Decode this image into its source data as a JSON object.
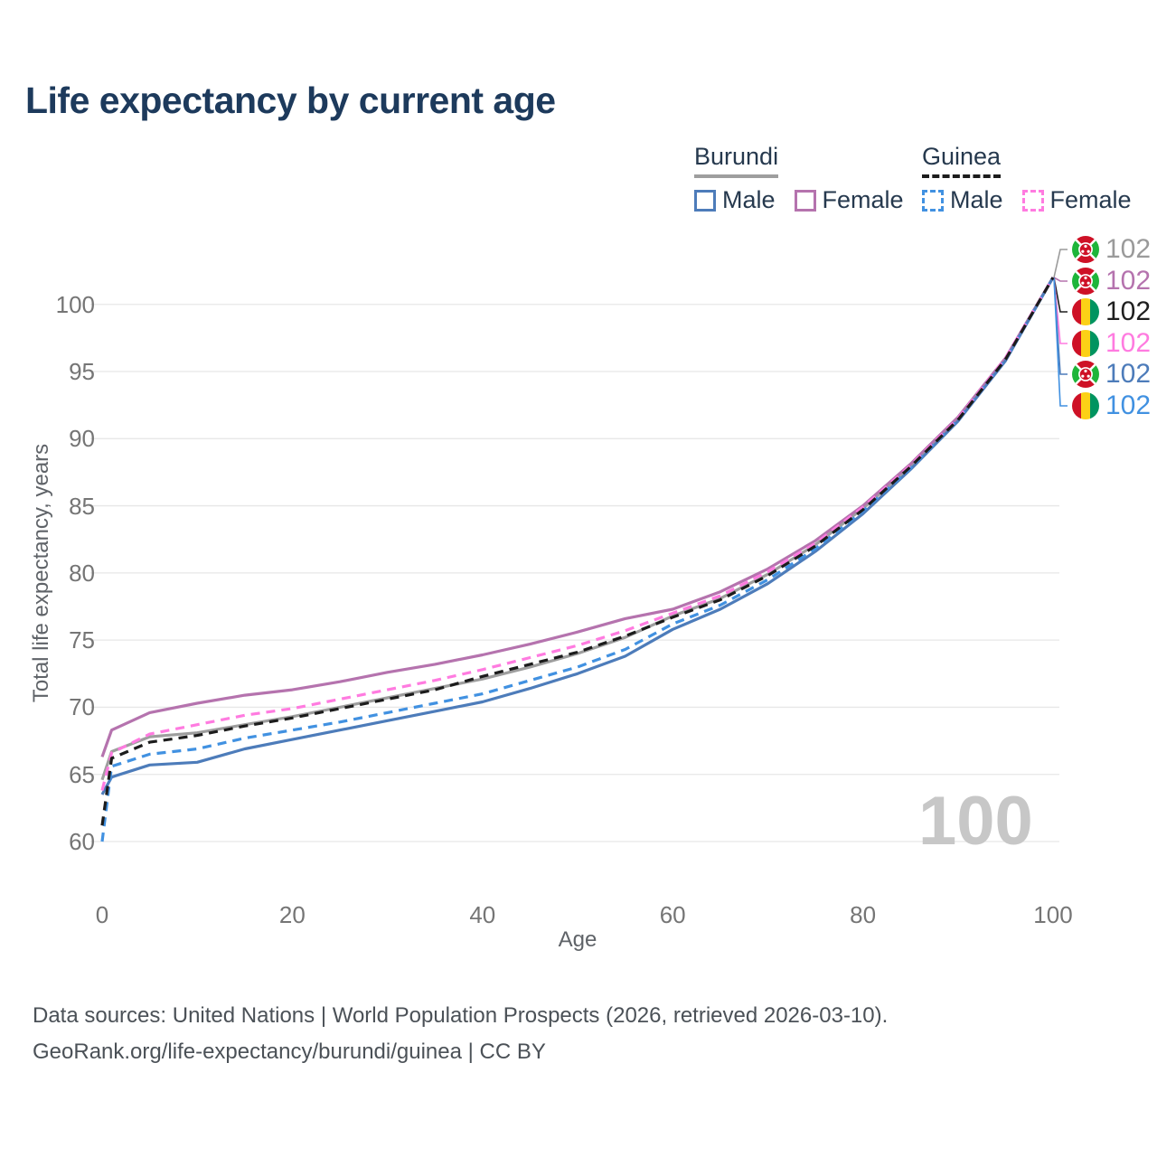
{
  "title": "Life expectancy by current age",
  "watermark": "100",
  "footer": {
    "line1": "Data sources: United Nations | World Population Prospects (2026, retrieved 2026-03-10).",
    "line2": "GeoRank.org/life-expectancy/burundi/guinea | CC BY"
  },
  "legend": {
    "groups": [
      {
        "name": "Burundi",
        "underline_style": "solid",
        "underline_color": "#9e9e9e",
        "items": [
          {
            "label": "Male",
            "color": "#4d7cba",
            "dash": false
          },
          {
            "label": "Female",
            "color": "#b573ae",
            "dash": false
          }
        ]
      },
      {
        "name": "Guinea",
        "underline_style": "dashed",
        "underline_color": "#1c1c1c",
        "items": [
          {
            "label": "Male",
            "color": "#4191e1",
            "dash": true
          },
          {
            "label": "Female",
            "color": "#ff7be0",
            "dash": true
          }
        ]
      }
    ]
  },
  "axes": {
    "x_title": "Age",
    "y_title": "Total life expectancy, years",
    "x_ticks": [
      0,
      20,
      40,
      60,
      80,
      100
    ],
    "y_ticks": [
      60,
      65,
      70,
      75,
      80,
      85,
      90,
      95,
      100
    ]
  },
  "chart_data": {
    "type": "line",
    "title": "Life expectancy by current age",
    "xlabel": "Age",
    "ylabel": "Total life expectancy, years",
    "xlim": [
      0,
      100
    ],
    "ylim": [
      58.5,
      103
    ],
    "grid": "horizontal gridlines every 5 years",
    "legend_position": "top-right",
    "x": [
      0,
      1,
      5,
      10,
      15,
      20,
      25,
      30,
      35,
      40,
      45,
      50,
      55,
      60,
      65,
      70,
      75,
      80,
      85,
      90,
      95,
      100
    ],
    "series": [
      {
        "name": "Burundi Total",
        "country": "Burundi",
        "sex": "Total",
        "color": "#9e9e9e",
        "dash": false,
        "values": [
          64.6,
          66.7,
          67.8,
          68.1,
          68.7,
          69.3,
          70.0,
          70.7,
          71.4,
          72.1,
          73.0,
          74.0,
          75.2,
          76.8,
          78.1,
          79.9,
          82.1,
          84.8,
          87.9,
          91.5,
          95.9,
          102
        ]
      },
      {
        "name": "Burundi Female",
        "country": "Burundi",
        "sex": "Female",
        "color": "#b573ae",
        "dash": false,
        "values": [
          66.3,
          68.3,
          69.6,
          70.3,
          70.9,
          71.3,
          71.9,
          72.6,
          73.2,
          73.9,
          74.7,
          75.6,
          76.6,
          77.3,
          78.6,
          80.3,
          82.4,
          85.0,
          88.1,
          91.6,
          96.0,
          102
        ]
      },
      {
        "name": "Burundi Male",
        "country": "Burundi",
        "sex": "Male",
        "color": "#4d7cba",
        "dash": false,
        "values": [
          63.5,
          64.8,
          65.7,
          65.9,
          66.9,
          67.6,
          68.3,
          69.0,
          69.7,
          70.4,
          71.4,
          72.5,
          73.8,
          75.8,
          77.3,
          79.2,
          81.6,
          84.4,
          87.7,
          91.3,
          95.8,
          102
        ]
      },
      {
        "name": "Guinea Male",
        "country": "Guinea",
        "sex": "Male",
        "color": "#4191e1",
        "dash": true,
        "values": [
          60.0,
          65.6,
          66.5,
          66.9,
          67.7,
          68.3,
          68.9,
          69.6,
          70.3,
          71.0,
          72.0,
          73.0,
          74.3,
          76.2,
          77.6,
          79.5,
          81.8,
          84.6,
          87.8,
          91.4,
          95.9,
          102
        ]
      },
      {
        "name": "Guinea Female",
        "country": "Guinea",
        "sex": "Female",
        "color": "#ff7be0",
        "dash": true,
        "values": [
          63.8,
          66.6,
          68.0,
          68.7,
          69.4,
          69.9,
          70.6,
          71.3,
          72.0,
          72.8,
          73.7,
          74.6,
          75.7,
          77.0,
          78.3,
          80.1,
          82.2,
          84.9,
          88.0,
          91.5,
          96.0,
          102
        ]
      },
      {
        "name": "Guinea Total",
        "country": "Guinea",
        "sex": "Total",
        "color": "#1c1c1c",
        "dash": true,
        "values": [
          61.2,
          66.2,
          67.4,
          67.9,
          68.6,
          69.2,
          69.9,
          70.6,
          71.3,
          72.3,
          73.2,
          74.1,
          75.3,
          76.7,
          78.0,
          79.8,
          82.0,
          84.7,
          87.9,
          91.4,
          95.9,
          102
        ]
      }
    ],
    "end_labels": [
      {
        "text": "102",
        "color": "#9a9a9a",
        "flag": "burundi",
        "series": "Burundi Total"
      },
      {
        "text": "102",
        "color": "#b573ae",
        "flag": "burundi",
        "series": "Burundi Female"
      },
      {
        "text": "102",
        "color": "#1f1f1f",
        "flag": "guinea",
        "series": "Guinea Total"
      },
      {
        "text": "102",
        "color": "#ff7be0",
        "flag": "guinea",
        "series": "Guinea Female"
      },
      {
        "text": "102",
        "color": "#4d7cba",
        "flag": "burundi",
        "series": "Burundi Male"
      },
      {
        "text": "102",
        "color": "#4191e1",
        "flag": "guinea",
        "series": "Guinea Male"
      }
    ],
    "flag_colors": {
      "burundi": {
        "red": "#ce1126",
        "green": "#1eb53a",
        "white": "#ffffff"
      },
      "guinea": {
        "red": "#ce1126",
        "yellow": "#fcd116",
        "green": "#009460"
      }
    }
  }
}
